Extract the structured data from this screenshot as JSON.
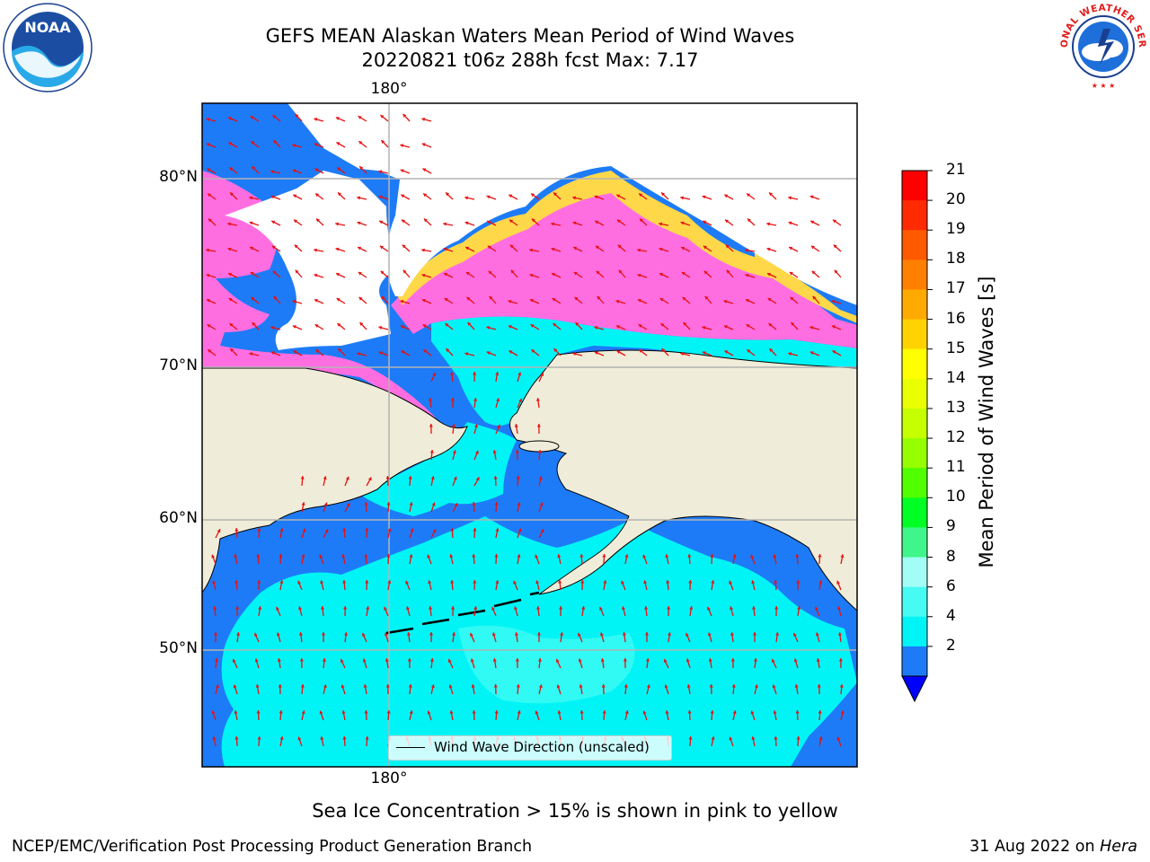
{
  "title": {
    "line1": "GEFS MEAN Alaskan Waters Mean Period of Wind Waves",
    "line2": "20220821 t06z 288h fcst   Max: 7.17"
  },
  "map": {
    "lon_labels": [
      "180°",
      "180°"
    ],
    "lat_labels": [
      "80°N",
      "70°N",
      "60°N",
      "50°N"
    ],
    "legend": "Wind Wave Direction (unscaled)",
    "colors": {
      "land": "#efedd9",
      "ocean_2_4": "#1e7bf7",
      "ocean_4_6": "#00f4f6",
      "ocean_6_8": "#46fbf3",
      "ice_pink": "#ff6ee1",
      "ice_yellow": "#ffd84a",
      "arrow": "#e81010",
      "grid": "#b4b4b4"
    }
  },
  "colorbar": {
    "label": "Mean Period of Wind Waves [s]",
    "ticks": [
      "21",
      "20",
      "19",
      "18",
      "17",
      "16",
      "15",
      "14",
      "13",
      "12",
      "11",
      "10",
      "9",
      "8",
      "6",
      "4",
      "2"
    ],
    "colors": [
      "#ff0000",
      "#ff2a00",
      "#ff5a00",
      "#ff8000",
      "#ffaa00",
      "#ffd200",
      "#ffff00",
      "#eaff00",
      "#c6ff00",
      "#96ff00",
      "#50ff00",
      "#00ff22",
      "#40f68a",
      "#a2fdf7",
      "#46fbf3",
      "#00f4f6",
      "#1e7bf7"
    ],
    "under_color": "#0000ff"
  },
  "footnote": "Sea Ice Concentration > 15% is shown in pink to yellow",
  "credit": "NCEP/EMC/Verification Post Processing Product Generation Branch",
  "date": {
    "text": "31 Aug 2022 on ",
    "host": "Hera"
  },
  "logos": {
    "noaa": "NOAA",
    "nws": "NATIONAL WEATHER SERVICE"
  }
}
